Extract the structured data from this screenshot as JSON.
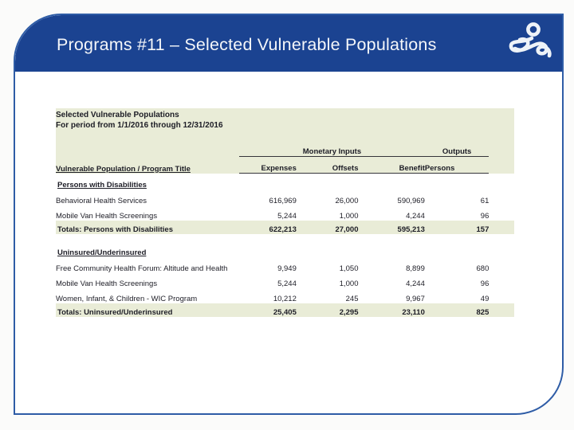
{
  "slide": {
    "title": "Programs #11 – Selected Vulnerable Populations",
    "logo_icon": "person-squiggle-logo"
  },
  "report": {
    "title": "Selected Vulnerable Populations",
    "period": "For period from 1/1/2016 through 12/31/2016",
    "column_groups": {
      "monetary": "Monetary Inputs",
      "outputs": "Outputs"
    },
    "columns": {
      "program": "Vulnerable Population / Program Title",
      "expenses": "Expenses",
      "offsets": "Offsets",
      "benefit": "Benefit",
      "persons": "Persons"
    },
    "groups": [
      {
        "name": "Persons with Disabilities",
        "rows": [
          {
            "title": "Behavioral Health Services",
            "expenses": "616,969",
            "offsets": "26,000",
            "benefit": "590,969",
            "persons": "61"
          },
          {
            "title": "Mobile Van Health Screenings",
            "expenses": "5,244",
            "offsets": "1,000",
            "benefit": "4,244",
            "persons": "96"
          }
        ],
        "total": {
          "title": "Totals: Persons with Disabilities",
          "expenses": "622,213",
          "offsets": "27,000",
          "benefit": "595,213",
          "persons": "157"
        }
      },
      {
        "name": "Uninsured/Underinsured",
        "rows": [
          {
            "title": "Free Community Health Forum: Altitude and Health",
            "expenses": "9,949",
            "offsets": "1,050",
            "benefit": "8,899",
            "persons": "680"
          },
          {
            "title": "Mobile Van Health Screenings",
            "expenses": "5,244",
            "offsets": "1,000",
            "benefit": "4,244",
            "persons": "96"
          },
          {
            "title": "Women, Infant, & Children - WIC Program",
            "expenses": "10,212",
            "offsets": "245",
            "benefit": "9,967",
            "persons": "49"
          }
        ],
        "total": {
          "title": "Totals: Uninsured/Underinsured",
          "expenses": "25,405",
          "offsets": "2,295",
          "benefit": "23,110",
          "persons": "825"
        }
      }
    ]
  },
  "colors": {
    "banner_blue": "#1b4391",
    "card_border": "#2e5ca6",
    "table_highlight": "#e9ecd7",
    "text_dark": "#1d1d26"
  }
}
